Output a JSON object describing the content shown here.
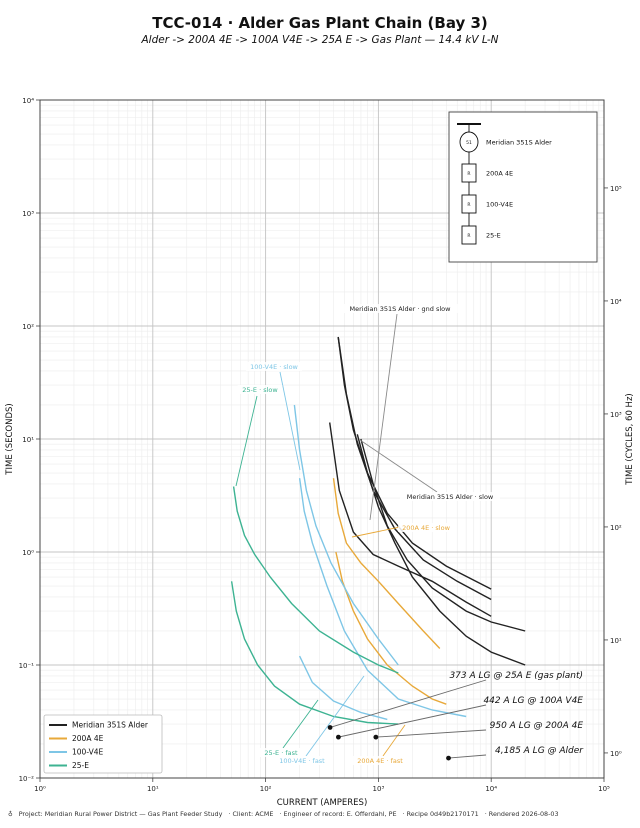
{
  "title": "TCC-014 · Alder Gas Plant Chain (Bay 3)",
  "subtitle": "Alder -> 200A 4E -> 100A V4E -> 25A E -> Gas Plant — 14.4 kV L-N",
  "footer": {
    "icon": "utility-logo-icon",
    "parts": [
      "Project: Meridian Rural Power District — Gas Plant Feeder Study",
      "·  Client: ACME",
      "·  Engineer of record: E. Offerdahl, PE",
      "·  Recipe 0d49b2170171",
      "·  Rendered 2026-08-03"
    ]
  },
  "chart_data": {
    "type": "line",
    "xlabel": "CURRENT (AMPERES)",
    "ylabel": "TIME (SECONDS)",
    "y2label": "TIME (CYCLES, 60 Hz)",
    "xscale": "log",
    "yscale": "log",
    "xlim": [
      1,
      100000
    ],
    "ylim": [
      0.01,
      10000
    ],
    "grid": true,
    "x_ticks": [
      "10⁰",
      "10¹",
      "10²",
      "10³",
      "10⁴",
      "10⁵"
    ],
    "y_ticks": [
      "10⁻²",
      "10⁻¹",
      "10⁰",
      "10¹",
      "10²",
      "10³",
      "10⁴"
    ],
    "y2_ticks": [
      {
        "value": 1,
        "label": "10⁰"
      },
      {
        "value": 10,
        "label": "10¹"
      },
      {
        "value": 100,
        "label": "10²"
      },
      {
        "value": 1000,
        "label": "10³"
      },
      {
        "value": 10000,
        "label": "10⁴"
      },
      {
        "value": 100000,
        "label": "10⁵"
      }
    ],
    "legend_position": "lower-left",
    "series": [
      {
        "name": "Meridian 351S Alder",
        "color": "#222222",
        "curves": [
          [
            [
              440,
              80
            ],
            [
              500,
              30
            ],
            [
              600,
              12
            ],
            [
              800,
              5
            ],
            [
              1200,
              2.2
            ],
            [
              2000,
              1.2
            ],
            [
              4000,
              0.75
            ],
            [
              10000,
              0.47
            ]
          ],
          [
            [
              440,
              80
            ],
            [
              520,
              25
            ],
            [
              650,
              9
            ],
            [
              900,
              3.5
            ],
            [
              1400,
              1.6
            ],
            [
              2500,
              0.85
            ],
            [
              5000,
              0.55
            ],
            [
              10000,
              0.38
            ]
          ],
          [
            [
              370,
              14
            ],
            [
              450,
              3.5
            ],
            [
              600,
              1.5
            ],
            [
              900,
              0.95
            ],
            [
              1500,
              0.75
            ],
            [
              3000,
              0.55
            ],
            [
              6000,
              0.36
            ],
            [
              10000,
              0.27
            ]
          ],
          [
            [
              700,
              10
            ],
            [
              900,
              4
            ],
            [
              1200,
              1.7
            ],
            [
              1800,
              0.85
            ],
            [
              3000,
              0.48
            ],
            [
              6000,
              0.3
            ],
            [
              10000,
              0.24
            ],
            [
              20000,
              0.2
            ]
          ],
          [
            [
              650,
              11
            ],
            [
              800,
              5
            ],
            [
              1000,
              2.5
            ],
            [
              1400,
              1.2
            ],
            [
              2000,
              0.6
            ],
            [
              3500,
              0.3
            ],
            [
              6000,
              0.18
            ],
            [
              10000,
              0.13
            ],
            [
              20000,
              0.1
            ]
          ]
        ]
      },
      {
        "name": "200A 4E",
        "color": "#E8A93A",
        "curves": [
          [
            [
              400,
              4.5
            ],
            [
              440,
              2.2
            ],
            [
              520,
              1.2
            ],
            [
              700,
              0.8
            ],
            [
              1000,
              0.55
            ],
            [
              1500,
              0.35
            ],
            [
              2500,
              0.2
            ],
            [
              3500,
              0.14
            ]
          ],
          [
            [
              420,
              1.0
            ],
            [
              480,
              0.55
            ],
            [
              600,
              0.3
            ],
            [
              800,
              0.17
            ],
            [
              1200,
              0.1
            ],
            [
              2000,
              0.065
            ],
            [
              3000,
              0.05
            ],
            [
              4000,
              0.045
            ]
          ]
        ]
      },
      {
        "name": "100-V4E",
        "color": "#7EC6E6",
        "curves": [
          [
            [
              180,
              20
            ],
            [
              200,
              8
            ],
            [
              230,
              3.5
            ],
            [
              280,
              1.7
            ],
            [
              380,
              0.8
            ],
            [
              600,
              0.35
            ],
            [
              1000,
              0.17
            ],
            [
              1500,
              0.1
            ]
          ],
          [
            [
              200,
              4.5
            ],
            [
              220,
              2.3
            ],
            [
              260,
              1.2
            ],
            [
              350,
              0.5
            ],
            [
              500,
              0.2
            ],
            [
              800,
              0.09
            ],
            [
              1500,
              0.05
            ],
            [
              3000,
              0.04
            ],
            [
              6000,
              0.035
            ]
          ],
          [
            [
              200,
              0.12
            ],
            [
              260,
              0.07
            ],
            [
              400,
              0.048
            ],
            [
              700,
              0.038
            ],
            [
              1200,
              0.033
            ]
          ]
        ]
      },
      {
        "name": "25-E",
        "color": "#3DB392",
        "curves": [
          [
            [
              52,
              3.8
            ],
            [
              56,
              2.3
            ],
            [
              65,
              1.4
            ],
            [
              80,
              0.95
            ],
            [
              110,
              0.6
            ],
            [
              170,
              0.35
            ],
            [
              300,
              0.2
            ],
            [
              600,
              0.13
            ],
            [
              1000,
              0.1
            ],
            [
              1500,
              0.085
            ]
          ],
          [
            [
              50,
              0.55
            ],
            [
              55,
              0.3
            ],
            [
              65,
              0.17
            ],
            [
              85,
              0.1
            ],
            [
              120,
              0.065
            ],
            [
              200,
              0.045
            ],
            [
              400,
              0.035
            ],
            [
              800,
              0.031
            ],
            [
              1500,
              0.03
            ]
          ]
        ]
      }
    ],
    "curve_annotations": [
      {
        "text": "Meridian 351S Alder · gnd slow",
        "color": "#222222"
      },
      {
        "text": "Meridian 351S Alder · slow",
        "color": "#222222"
      },
      {
        "text": "200A 4E · slow",
        "color": "#E8A93A"
      },
      {
        "text": "100-V4E · slow",
        "color": "#7EC6E6"
      },
      {
        "text": "25-E · slow",
        "color": "#3DB392"
      },
      {
        "text": "25-E · fast",
        "color": "#3DB392"
      },
      {
        "text": "100-V4E · fast",
        "color": "#7EC6E6"
      },
      {
        "text": "200A 4E · fast",
        "color": "#E8A93A"
      }
    ],
    "fault_markers": [
      {
        "label": "373 A LG @ 25A E (gas plant)",
        "x": 373,
        "y": 0.028
      },
      {
        "label": "442 A LG @ 100A V4E",
        "x": 442,
        "y": 0.023
      },
      {
        "label": "950 A LG @ 200A 4E",
        "x": 950,
        "y": 0.023
      },
      {
        "label": "4,185 A LG @ Alder",
        "x": 4185,
        "y": 0.015
      }
    ],
    "one_line": [
      {
        "symbol": "51",
        "label": "Meridian 351S Alder"
      },
      {
        "symbol": "R",
        "label": "200A 4E"
      },
      {
        "symbol": "R",
        "label": "100-V4E"
      },
      {
        "symbol": "R",
        "label": "25-E"
      }
    ]
  }
}
